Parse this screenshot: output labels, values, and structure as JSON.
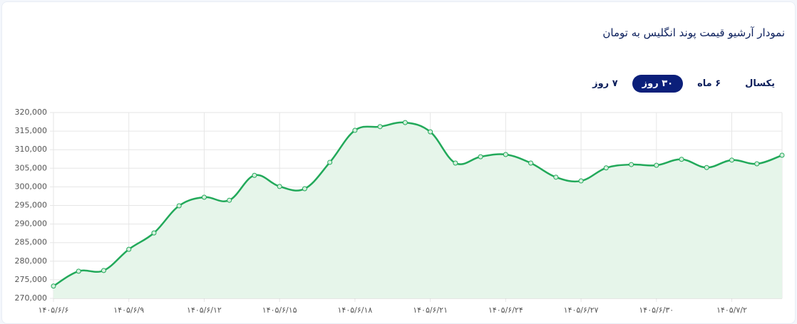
{
  "header": {
    "title": "نمودار آرشیو قیمت پوند انگلیس به تومان"
  },
  "tabs": {
    "items": [
      "۷ روز",
      "۳۰ روز",
      "۶ ماه",
      "یکسال"
    ],
    "active": 1
  },
  "chart_data": {
    "type": "line",
    "categories": [
      "۱۴۰۵/۶/۶",
      null,
      null,
      "۱۴۰۵/۶/۹",
      null,
      null,
      "۱۴۰۵/۶/۱۲",
      null,
      null,
      "۱۴۰۵/۶/۱۵",
      null,
      null,
      "۱۴۰۵/۶/۱۸",
      null,
      null,
      "۱۴۰۵/۶/۲۱",
      null,
      null,
      "۱۴۰۵/۶/۲۴",
      null,
      null,
      "۱۴۰۵/۶/۲۷",
      null,
      null,
      "۱۴۰۵/۶/۳۰",
      null,
      null,
      "۱۴۰۵/۷/۲",
      null,
      null
    ],
    "values": [
      273300,
      277300,
      277500,
      283200,
      287600,
      294900,
      297200,
      296400,
      303100,
      300100,
      299500,
      306600,
      315200,
      316200,
      317300,
      314800,
      306400,
      308100,
      308700,
      306400,
      302600,
      301600,
      305100,
      306000,
      305800,
      307400,
      305200,
      307200,
      306200,
      308500
    ],
    "color": "#22a95a",
    "area_color": "#e6f5ea",
    "ylim": [
      270000,
      320000
    ],
    "yticks": [
      {
        "value": 270000,
        "label": "270,000"
      },
      {
        "value": 275000,
        "label": "275,000"
      },
      {
        "value": 280000,
        "label": "280,000"
      },
      {
        "value": 285000,
        "label": "285,000"
      },
      {
        "value": 290000,
        "label": "290,000"
      },
      {
        "value": 295000,
        "label": "295,000"
      },
      {
        "value": 300000,
        "label": "300,000"
      },
      {
        "value": 305000,
        "label": "305,000"
      },
      {
        "value": 310000,
        "label": "310,000"
      },
      {
        "value": 315000,
        "label": "315,000"
      },
      {
        "value": 320000,
        "label": "320,000"
      }
    ],
    "grid": true
  }
}
